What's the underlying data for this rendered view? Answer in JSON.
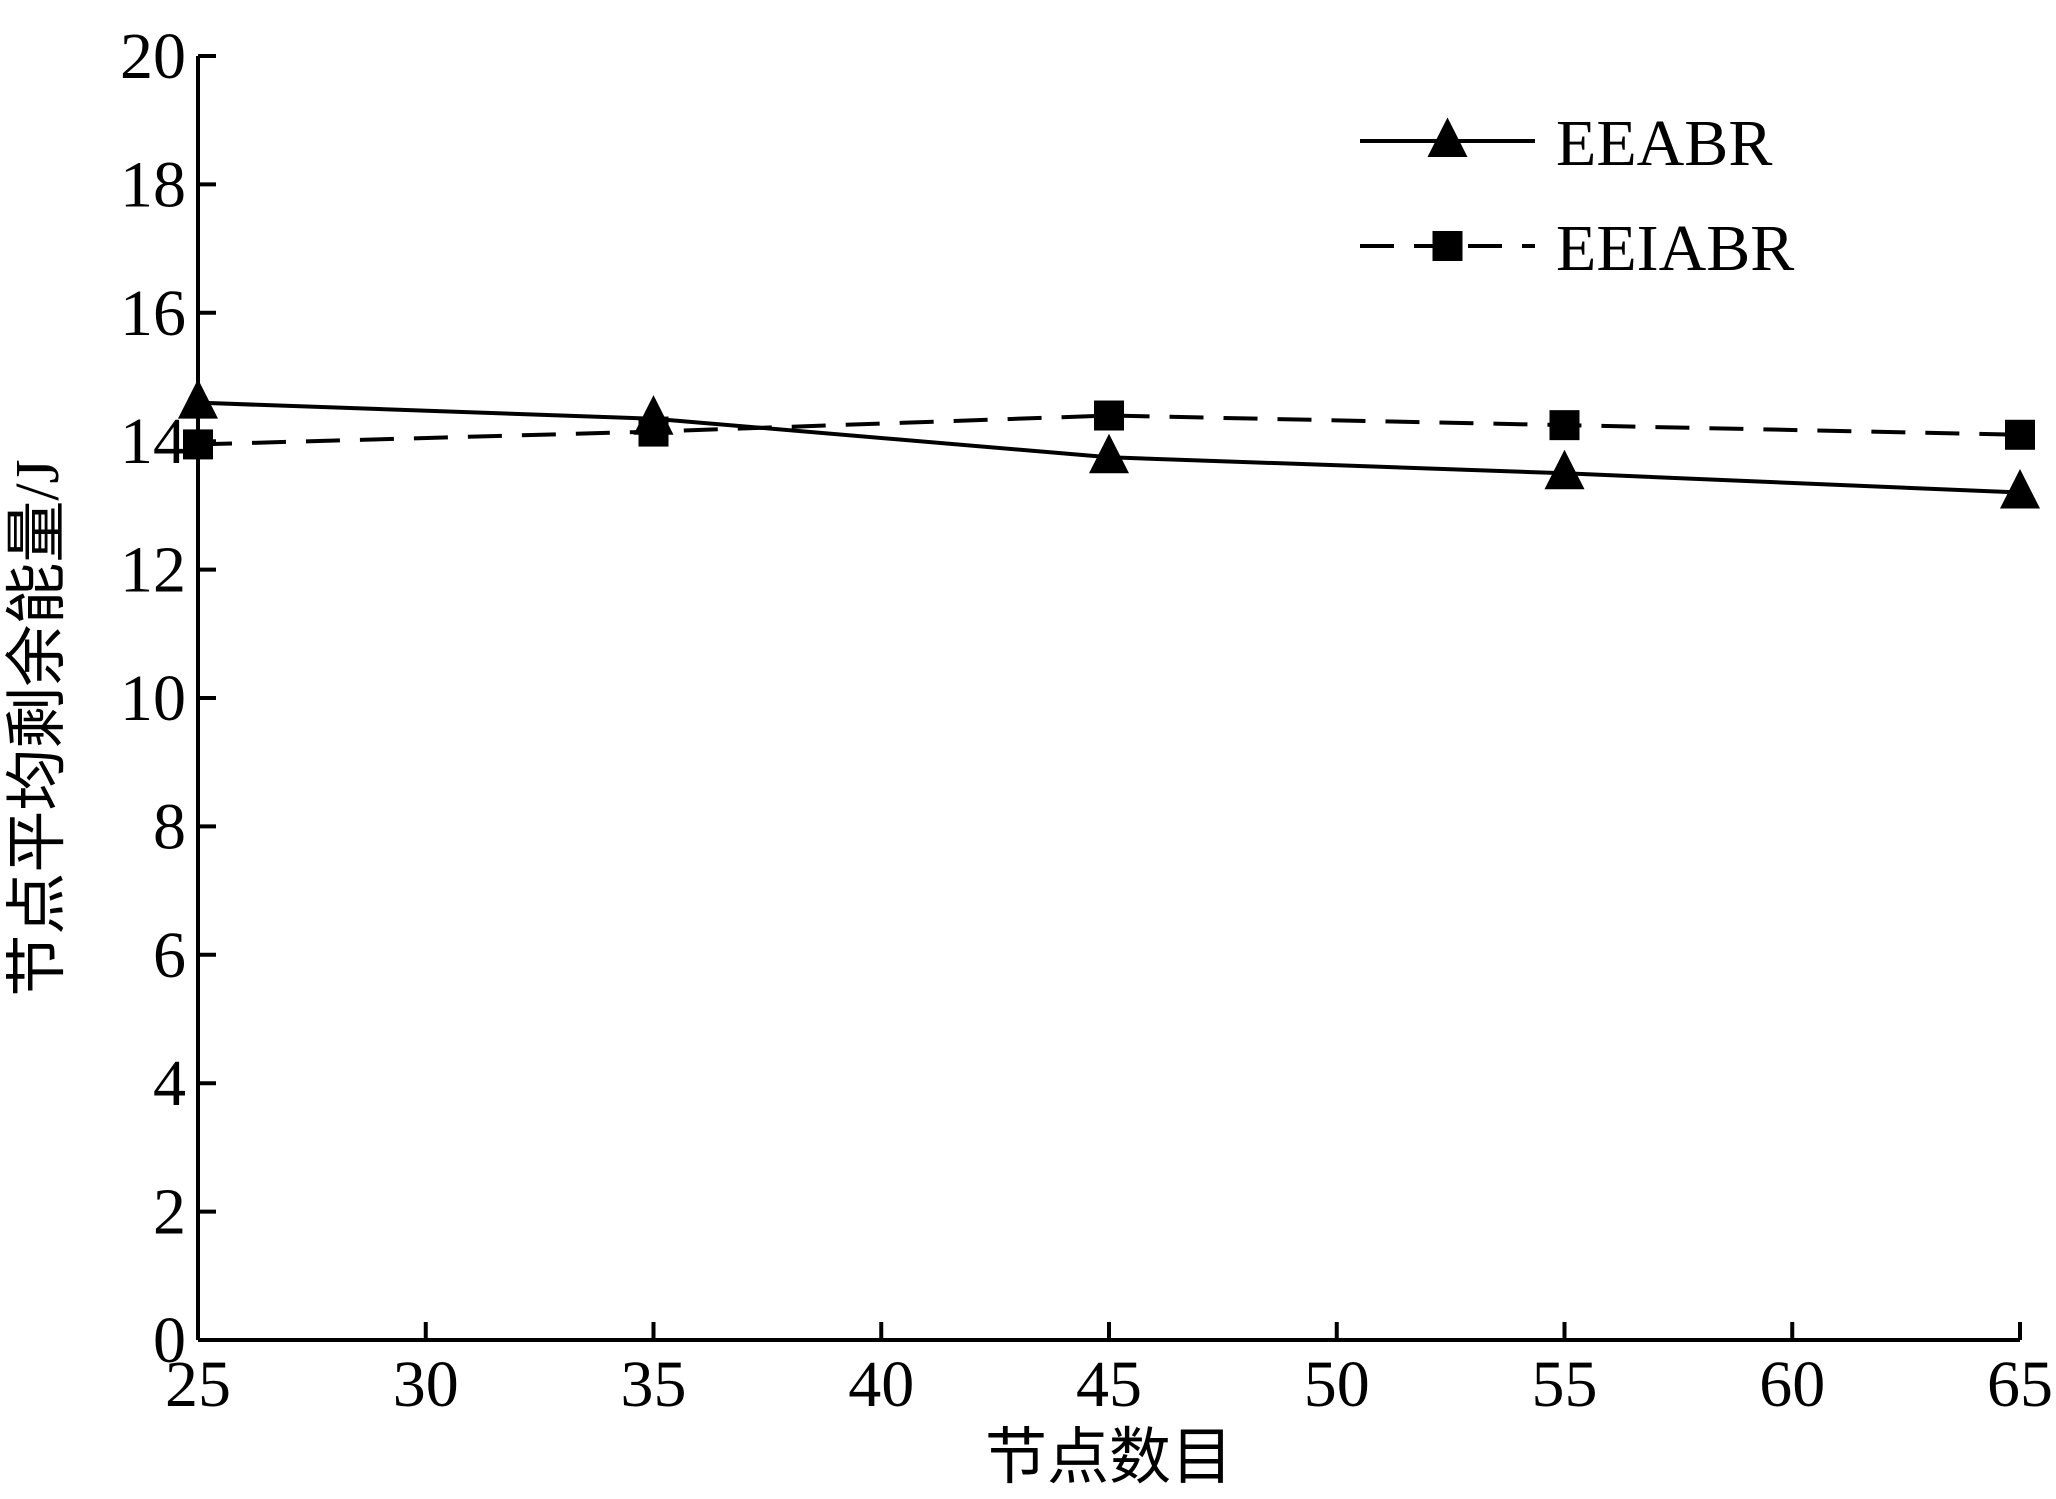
{
  "chart_data": {
    "type": "line",
    "x": [
      25,
      35,
      45,
      55,
      65
    ],
    "series": [
      {
        "name": "EEABR",
        "values": [
          14.6,
          14.35,
          13.75,
          13.5,
          13.2
        ],
        "line_style": "solid",
        "marker": "triangle"
      },
      {
        "name": "EEIABR",
        "values": [
          13.95,
          14.15,
          14.4,
          14.25,
          14.1
        ],
        "line_style": "dashed",
        "marker": "square"
      }
    ],
    "xlabel": "节点数目",
    "ylabel": "节点平均剩余能量/J",
    "xlim": [
      25,
      65
    ],
    "ylim": [
      0,
      20
    ],
    "x_ticks": [
      "25",
      "30",
      "35",
      "40",
      "45",
      "50",
      "55",
      "60",
      "65"
    ],
    "y_ticks": [
      "0",
      "2",
      "4",
      "6",
      "8",
      "10",
      "12",
      "14",
      "16",
      "18",
      "20"
    ],
    "legend_position": "top-right",
    "grid": false,
    "colors": {
      "series": "#000000",
      "axis": "#000000",
      "background": "#ffffff"
    }
  }
}
